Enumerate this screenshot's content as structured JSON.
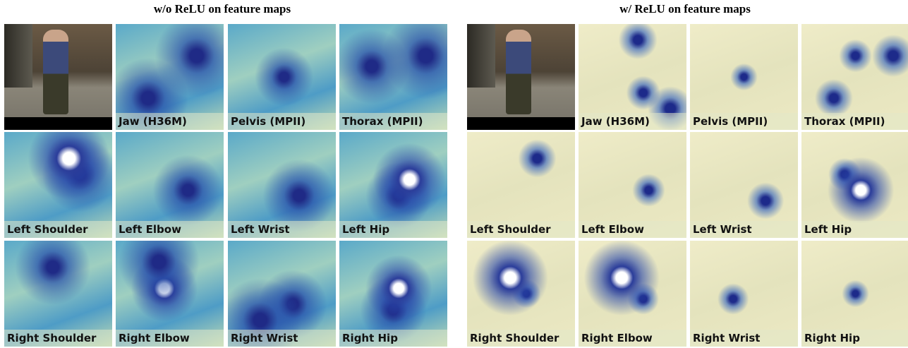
{
  "panels": [
    {
      "title": "w/o ReLU on feature maps",
      "labels": [
        "Jaw (H36M)",
        "Pelvis (MPII)",
        "Thorax (MPII)",
        "Left Shoulder",
        "Left Elbow",
        "Left Wrist",
        "Left Hip",
        "Right Shoulder",
        "Right Elbow",
        "Right Wrist",
        "Right Hip"
      ]
    },
    {
      "title": "w/ ReLU on feature maps",
      "labels": [
        "Jaw (H36M)",
        "Pelvis (MPII)",
        "Thorax (MPII)",
        "Left Shoulder",
        "Left Elbow",
        "Left Wrist",
        "Left Hip",
        "Right Shoulder",
        "Right Elbow",
        "Right Wrist",
        "Right Hip"
      ]
    }
  ]
}
